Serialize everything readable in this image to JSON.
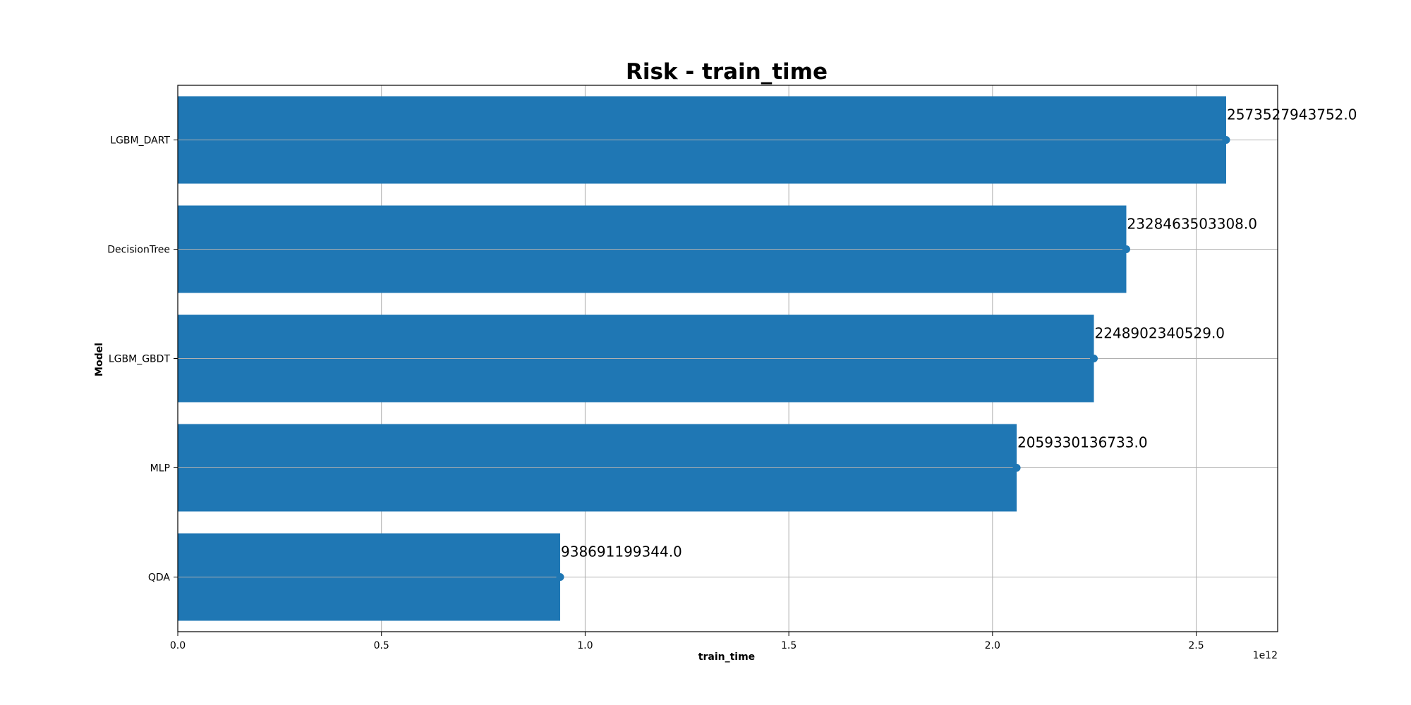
{
  "chart_data": {
    "type": "bar",
    "orientation": "horizontal",
    "title": "Risk - train_time",
    "xlabel": "train_time",
    "ylabel": "Model",
    "x_offset_label": "1e12",
    "categories": [
      "LGBM_DART",
      "DecisionTree",
      "LGBM_GBDT",
      "MLP",
      "QDA"
    ],
    "values": [
      2573527943752.0,
      2328463503308.0,
      2248902340529.0,
      2059330136733.0,
      938691199344.0
    ],
    "value_labels": [
      "2573527943752.0",
      "2328463503308.0",
      "2248902340529.0",
      "2059330136733.0",
      "938691199344.0"
    ],
    "xlim": [
      0,
      2700000000000.0
    ],
    "x_ticks": [
      0,
      500000000000.0,
      1000000000000.0,
      1500000000000.0,
      2000000000000.0,
      2500000000000.0
    ],
    "x_tick_labels": [
      "0.0",
      "0.5",
      "1.0",
      "1.5",
      "2.0",
      "2.5"
    ],
    "grid": true,
    "color": "#1f77b4"
  }
}
